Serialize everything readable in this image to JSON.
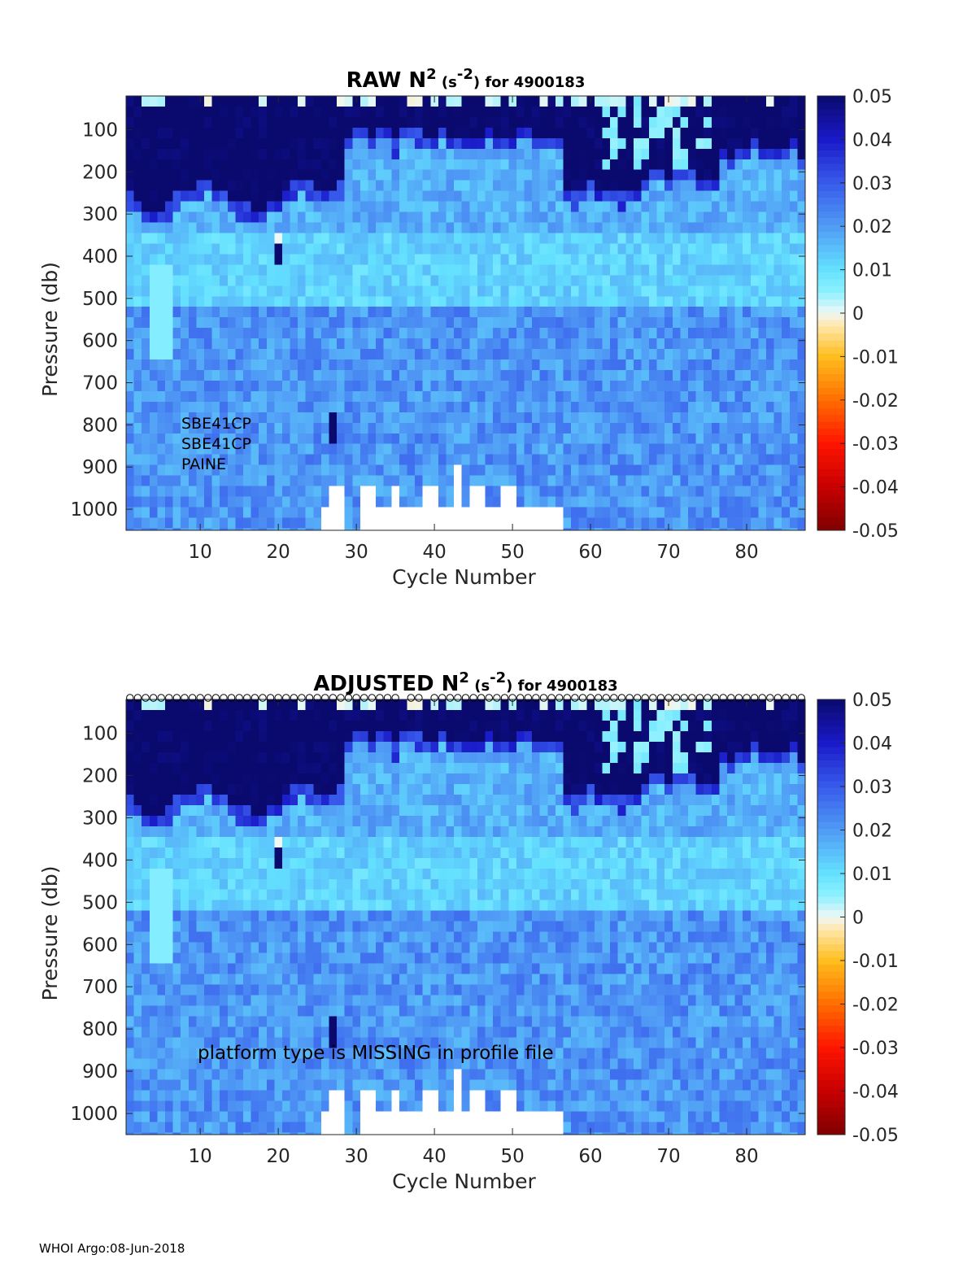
{
  "footer": "WHOI Argo:08-Jun-2018",
  "chart_data": [
    {
      "type": "heatmap",
      "title_prefix": "RAW N",
      "title_exp": "2",
      "title_unit_open": " (s",
      "title_unit_exp": "-2",
      "title_suffix": ") for 4900183",
      "xlabel": "Cycle Number",
      "ylabel": "Pressure (db)",
      "xlim": [
        1,
        87
      ],
      "ylim": [
        1050,
        20
      ],
      "xticks": [
        10,
        20,
        30,
        40,
        50,
        60,
        70,
        80
      ],
      "yticks": [
        100,
        200,
        300,
        400,
        500,
        600,
        700,
        800,
        900,
        1000
      ],
      "color_range": [
        -0.05,
        0.05
      ],
      "colorbar_ticks": [
        "0.05",
        "0.04",
        "0.03",
        "0.02",
        "0.01",
        "0",
        "-0.01",
        "-0.02",
        "-0.03",
        "-0.04",
        "-0.05"
      ],
      "annotations": [
        "SBE41CP",
        "SBE41CP",
        "PAINE"
      ],
      "qc_markers": false
    },
    {
      "type": "heatmap",
      "title_prefix": "ADJUSTED N",
      "title_exp": "2",
      "title_unit_open": " (s",
      "title_unit_exp": "-2",
      "title_suffix": ") for 4900183",
      "xlabel": "Cycle Number",
      "ylabel": "Pressure (db)",
      "xlim": [
        1,
        87
      ],
      "ylim": [
        1050,
        20
      ],
      "xticks": [
        10,
        20,
        30,
        40,
        50,
        60,
        70,
        80
      ],
      "yticks": [
        100,
        200,
        300,
        400,
        500,
        600,
        700,
        800,
        900,
        1000
      ],
      "color_range": [
        -0.05,
        0.05
      ],
      "colorbar_ticks": [
        "0.05",
        "0.04",
        "0.03",
        "0.02",
        "0.01",
        "0",
        "-0.01",
        "-0.02",
        "-0.03",
        "-0.04",
        "-0.05"
      ],
      "annotations": [
        "platform type is MISSING in profile file"
      ],
      "qc_markers": true,
      "qc_missing_cycles": [
        36,
        39
      ]
    }
  ]
}
